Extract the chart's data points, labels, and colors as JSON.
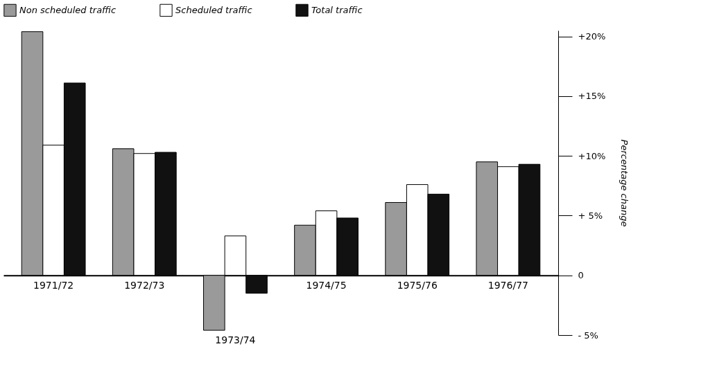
{
  "chart_data": {
    "type": "bar",
    "ylabel": "Percentage change",
    "categories": [
      "1971/72",
      "1972/73",
      "1973/74",
      "1974/75",
      "1975/76",
      "1976/77"
    ],
    "series": [
      {
        "name": "Non scheduled traffic",
        "color": "#9a9a9a",
        "values": [
          20.4,
          10.6,
          -4.6,
          4.2,
          6.1,
          9.5
        ]
      },
      {
        "name": "Scheduled traffic",
        "color": "#ffffff",
        "values": [
          10.9,
          10.2,
          3.3,
          5.4,
          7.6,
          9.1
        ]
      },
      {
        "name": "Total traffic",
        "color": "#111111",
        "values": [
          16.1,
          10.3,
          -1.5,
          4.8,
          6.8,
          9.3
        ]
      }
    ],
    "ylim": [
      -5,
      20.5
    ],
    "yticks": [
      {
        "value": -5,
        "label": "- 5%"
      },
      {
        "value": 0,
        "label": "0"
      },
      {
        "value": 5,
        "label": "+ 5%"
      },
      {
        "value": 10,
        "label": "+10%"
      },
      {
        "value": 15,
        "label": "+15%"
      },
      {
        "value": 20,
        "label": "+20%"
      }
    ],
    "grid": false,
    "legend": "top"
  }
}
